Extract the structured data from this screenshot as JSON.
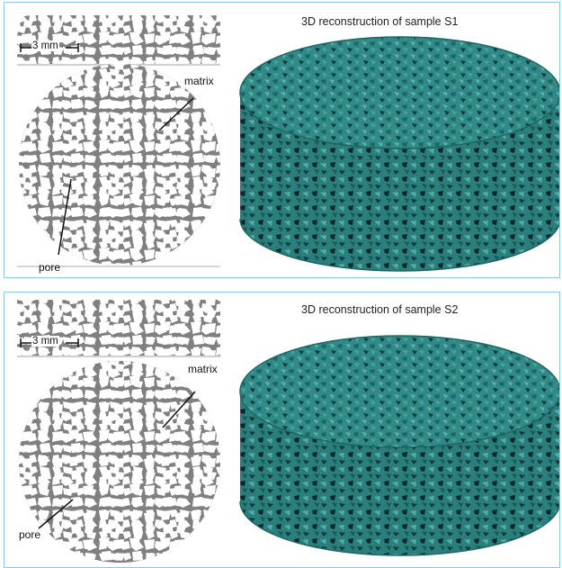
{
  "panels": [
    {
      "title": "3D reconstruction of sample S1",
      "scale_label": "3 mm",
      "matrix_label": "matrix",
      "pore_label": "pore",
      "colors": {
        "solid": "#7f7f7f",
        "pore": "#ffffff",
        "reconstruction": "#2f8a88",
        "reconstruction_dark": "#0f3a3a"
      }
    },
    {
      "title": "3D reconstruction of sample S2",
      "scale_label": "3 mm",
      "matrix_label": "matrix",
      "pore_label": "pore",
      "colors": {
        "solid": "#7f7f7f",
        "pore": "#ffffff",
        "reconstruction": "#2f8a88",
        "reconstruction_dark": "#0f3a3a"
      }
    }
  ]
}
